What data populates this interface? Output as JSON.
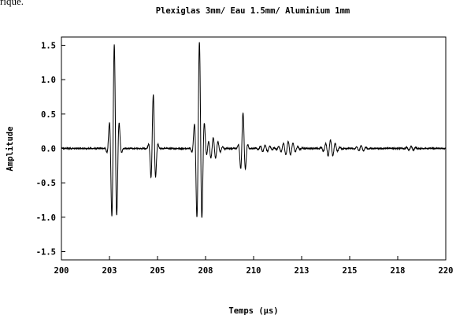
{
  "page": {
    "caption_fragment": "rique."
  },
  "chart_data": {
    "type": "line",
    "title": "Plexiglas 3mm/ Eau 1.5mm/ Aluminium 1mm",
    "xlabel": "Temps (µs)",
    "ylabel": "Amplitude",
    "xlim": [
      200,
      220
    ],
    "ylim": [
      -1.62,
      1.62
    ],
    "x_ticks": [
      200,
      202.5,
      205,
      207.5,
      210,
      212.5,
      215,
      217.5,
      220
    ],
    "x_tick_labels": [
      "200",
      "203",
      "205",
      "208",
      "210",
      "213",
      "215",
      "218",
      "220"
    ],
    "y_ticks": [
      1.5,
      1.0,
      0.5,
      0.0,
      -0.5,
      -1.0,
      -1.5
    ],
    "y_tick_labels": [
      "1.5",
      "1.0",
      "0.5",
      "0.0",
      "-0.5",
      "-1.0",
      "-1.5"
    ],
    "grid": false,
    "line_color": "#000000",
    "noise_level": 0.008,
    "series": [
      {
        "bursts": [
          {
            "t0": 202.75,
            "amplitude": 1.45,
            "freq_mhz": 3.7,
            "width": 0.22,
            "baseline": 0.06
          },
          {
            "t0": 204.78,
            "amplitude": 0.78,
            "freq_mhz": 3.7,
            "width": 0.16,
            "baseline": 0.0
          },
          {
            "t0": 207.18,
            "amplitude": 1.5,
            "freq_mhz": 3.6,
            "width": 0.22,
            "baseline": 0.05
          },
          {
            "t0": 207.9,
            "amplitude": 0.16,
            "freq_mhz": 4.0,
            "width": 0.35,
            "baseline": 0.0
          },
          {
            "t0": 209.45,
            "amplitude": 0.52,
            "freq_mhz": 3.7,
            "width": 0.17,
            "baseline": 0.0
          },
          {
            "t0": 210.6,
            "amplitude": 0.05,
            "freq_mhz": 4.0,
            "width": 0.35,
            "baseline": 0.0
          },
          {
            "t0": 211.8,
            "amplitude": 0.1,
            "freq_mhz": 4.0,
            "width": 0.45,
            "baseline": 0.0
          },
          {
            "t0": 214.0,
            "amplitude": 0.12,
            "freq_mhz": 4.0,
            "width": 0.35,
            "baseline": 0.0
          },
          {
            "t0": 215.6,
            "amplitude": 0.04,
            "freq_mhz": 4.0,
            "width": 0.3,
            "baseline": 0.0
          },
          {
            "t0": 218.2,
            "amplitude": 0.03,
            "freq_mhz": 4.0,
            "width": 0.3,
            "baseline": 0.0
          }
        ]
      }
    ]
  }
}
